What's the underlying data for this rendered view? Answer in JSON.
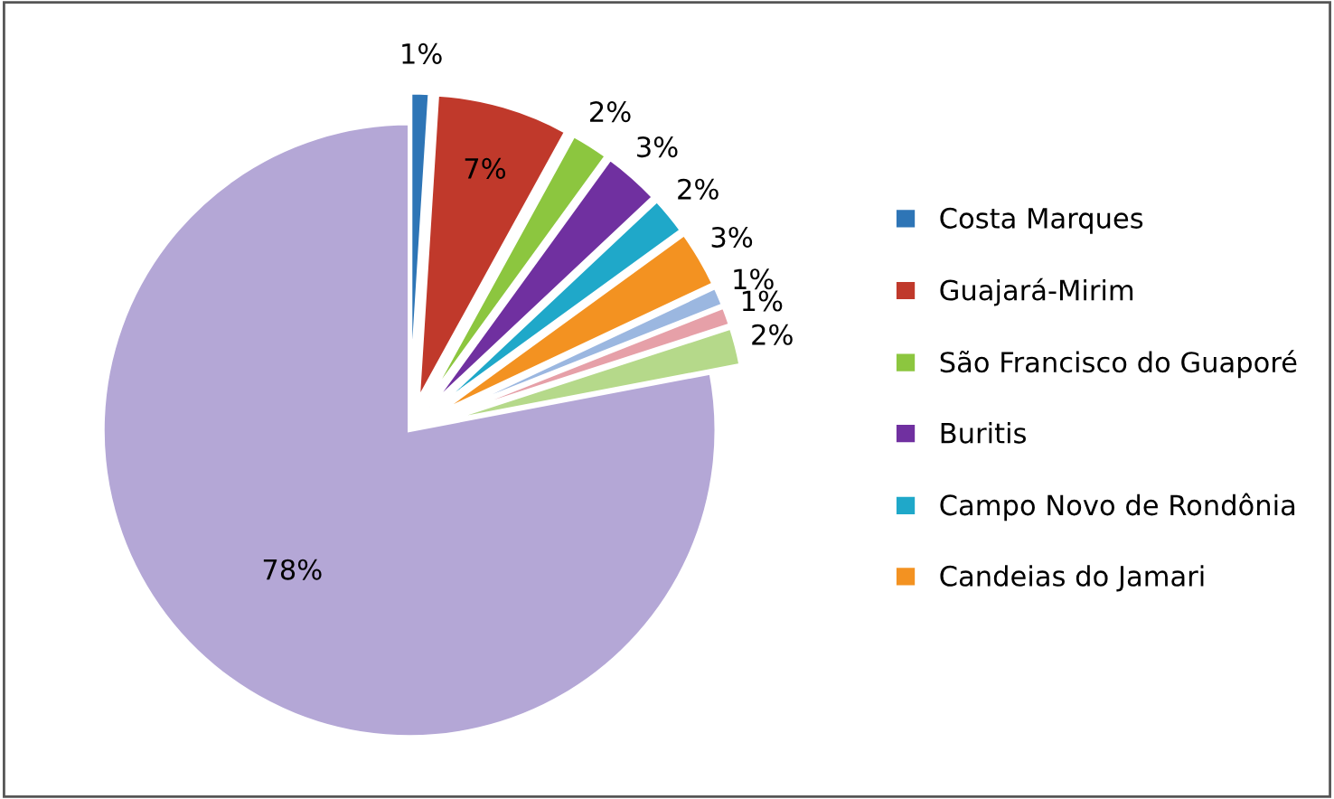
{
  "chart_data": {
    "type": "pie",
    "categories": [
      "Costa Marques",
      "Guajará-Mirim",
      "São Francisco do Guaporé",
      "Buritis",
      "Campo Novo de Rondônia",
      "Candeias do Jamari",
      null,
      null,
      null,
      null
    ],
    "values": [
      1,
      7,
      2,
      3,
      2,
      3,
      1,
      1,
      2,
      78
    ],
    "value_labels": [
      "1%",
      "7%",
      "2%",
      "3%",
      "2%",
      "3%",
      "1%",
      "1%",
      "2%",
      "78%"
    ],
    "colors": [
      "#2e75b6",
      "#c0392b",
      "#8cc63f",
      "#7030a0",
      "#1fa8c9",
      "#f39221",
      "#9bb7e0",
      "#e6a0a8",
      "#b5d98a",
      "#b4a7d6"
    ],
    "legend": "right"
  }
}
